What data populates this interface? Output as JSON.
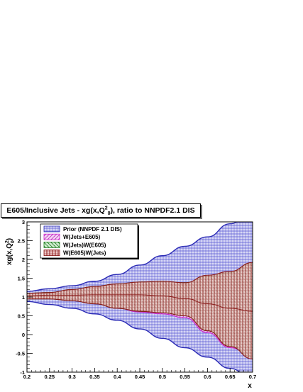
{
  "chart_data": {
    "type": "area",
    "title_main": "E605/Inclusive Jets - xg(x,Q",
    "title_sup": "2",
    "title_sub": "0",
    "title_tail": "), ratio to NNPDF2.1 DIS",
    "xlabel": "x",
    "ylabel_main": "xg(x,Q",
    "ylabel_sup": "2",
    "ylabel_sub": "0",
    "ylabel_tail": ")",
    "xlim": [
      0.2,
      0.7
    ],
    "ylim": [
      -1,
      3
    ],
    "xticks": [
      "0.2",
      "0.25",
      "0.3",
      "0.35",
      "0.4",
      "0.45",
      "0.5",
      "0.55",
      "0.6",
      "0.65",
      "0.7"
    ],
    "yticks": [
      "-1",
      "-0.5",
      "0",
      "0.5",
      "1",
      "1.5",
      "2",
      "2.5",
      "3"
    ],
    "legend_position": "top-left",
    "x": [
      0.2,
      0.25,
      0.3,
      0.35,
      0.4,
      0.45,
      0.5,
      0.55,
      0.6,
      0.65,
      0.7
    ],
    "series": [
      {
        "name": "Prior (NNPDF 2.1 DIS)",
        "color": "#2b2bb5",
        "fill": "#c6c6f0",
        "upper": [
          1.15,
          1.22,
          1.3,
          1.42,
          1.6,
          1.85,
          2.1,
          2.35,
          2.6,
          2.95,
          3.3
        ],
        "lower": [
          0.88,
          0.8,
          0.7,
          0.55,
          0.38,
          0.15,
          -0.1,
          -0.35,
          -0.6,
          -0.9,
          -1.2
        ],
        "central": [
          1.0,
          1.0,
          1.0,
          1.0,
          1.0,
          1.0,
          1.0,
          1.0,
          1.0,
          1.0,
          1.0
        ]
      },
      {
        "name": "W(Jets+E605)",
        "color": "#cc22cc",
        "fill": "#e8b8e8",
        "upper": [
          1.08,
          1.1,
          1.18,
          1.25,
          1.3,
          1.35,
          1.38,
          1.35,
          1.45,
          1.55,
          1.75
        ],
        "lower": [
          0.95,
          0.95,
          0.9,
          0.82,
          0.7,
          0.6,
          0.55,
          0.45,
          0.05,
          -0.35,
          -0.55
        ],
        "central": [
          1.02,
          1.03,
          1.04,
          1.05,
          1.05,
          1.05,
          1.02,
          0.95,
          0.8,
          0.68,
          0.6
        ]
      },
      {
        "name": "W(Jets)W(E605)",
        "color": "#1a7a1a",
        "fill": "#b8e0b8",
        "upper": [
          1.1,
          1.12,
          1.2,
          1.28,
          1.35,
          1.4,
          1.42,
          1.38,
          1.55,
          1.65,
          1.9
        ],
        "lower": [
          0.95,
          0.95,
          0.9,
          0.82,
          0.7,
          0.62,
          0.58,
          0.5,
          0.12,
          -0.3,
          -0.6
        ],
        "central": [
          1.03,
          1.05,
          1.05,
          1.06,
          1.06,
          1.06,
          1.03,
          0.96,
          0.82,
          0.7,
          0.62
        ]
      },
      {
        "name": "W(E605)W(Jets)",
        "color": "#8b1a1a",
        "fill": "#d9a0a0",
        "upper": [
          1.1,
          1.12,
          1.2,
          1.28,
          1.35,
          1.4,
          1.42,
          1.38,
          1.58,
          1.68,
          1.92
        ],
        "lower": [
          0.95,
          0.95,
          0.9,
          0.82,
          0.7,
          0.62,
          0.58,
          0.5,
          0.1,
          -0.32,
          -0.65
        ],
        "central": [
          1.03,
          1.05,
          1.05,
          1.06,
          1.06,
          1.06,
          1.03,
          0.96,
          0.82,
          0.7,
          0.62
        ]
      }
    ]
  }
}
